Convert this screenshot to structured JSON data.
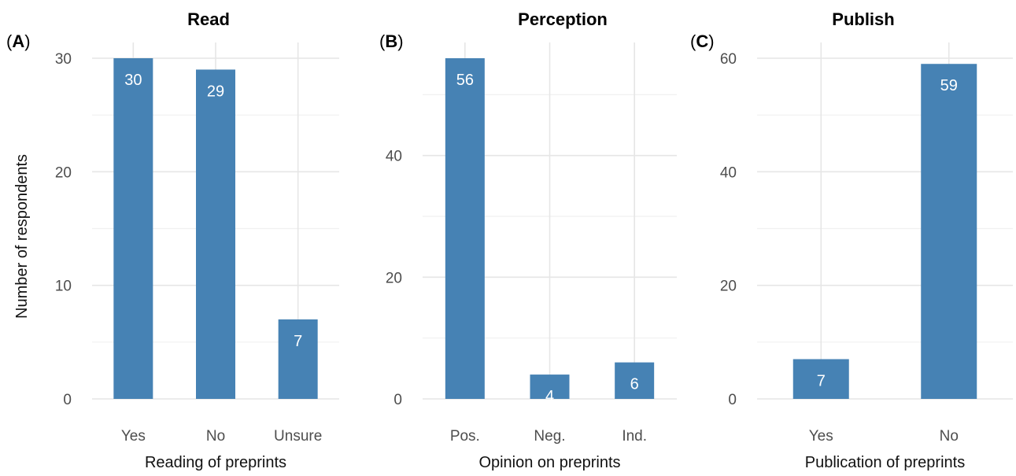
{
  "shared": {
    "ylabel": "Number of respondents"
  },
  "colors": {
    "bar": "#4682B4",
    "grid": "#e6e6e6",
    "text": "#4d4d4d"
  },
  "chart_data": [
    {
      "type": "bar",
      "tag": "A",
      "title": "Read",
      "categories": [
        "Yes",
        "No",
        "Unsure"
      ],
      "values": [
        30,
        29,
        7
      ],
      "xlabel": "Reading of preprints",
      "ylabel": "Number of respondents",
      "ylim": [
        0,
        30
      ],
      "yticks": [
        0,
        10,
        20,
        30
      ],
      "grid": true
    },
    {
      "type": "bar",
      "tag": "B",
      "title": "Perception",
      "categories": [
        "Pos.",
        "Neg.",
        "Ind."
      ],
      "values": [
        56,
        4,
        6
      ],
      "xlabel": "Opinion on preprints",
      "ylabel": "",
      "ylim": [
        0,
        56
      ],
      "yticks": [
        0,
        20,
        40
      ],
      "grid": true
    },
    {
      "type": "bar",
      "tag": "C",
      "title": "Publish",
      "categories": [
        "Yes",
        "No"
      ],
      "values": [
        7,
        59
      ],
      "xlabel": "Publication of preprints",
      "ylabel": "",
      "ylim": [
        0,
        60
      ],
      "yticks": [
        0,
        20,
        40,
        60
      ],
      "grid": true
    }
  ]
}
